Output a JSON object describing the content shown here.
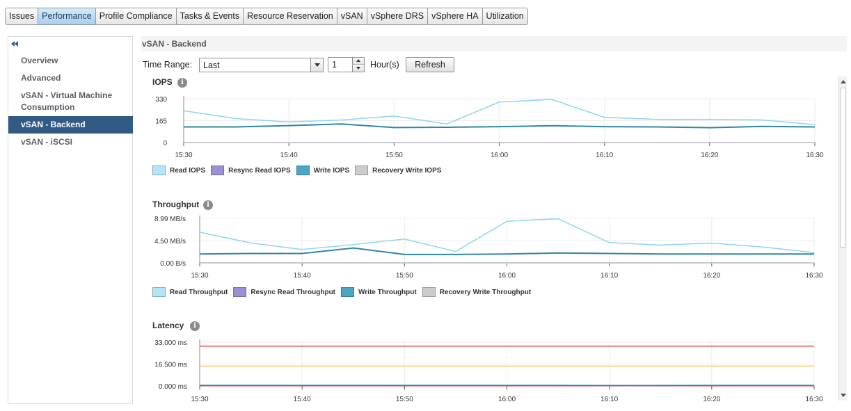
{
  "top_tabs": [
    {
      "label": "Issues",
      "active": false
    },
    {
      "label": "Performance",
      "active": true
    },
    {
      "label": "Profile Compliance",
      "active": false
    },
    {
      "label": "Tasks & Events",
      "active": false
    },
    {
      "label": "Resource Reservation",
      "active": false
    },
    {
      "label": "vSAN",
      "active": false
    },
    {
      "label": "vSphere DRS",
      "active": false
    },
    {
      "label": "vSphere HA",
      "active": false
    },
    {
      "label": "Utilization",
      "active": false
    }
  ],
  "sidebar": {
    "items": [
      {
        "label": "Overview",
        "active": false
      },
      {
        "label": "Advanced",
        "active": false
      },
      {
        "label": "vSAN - Virtual Machine Consumption",
        "active": false
      },
      {
        "label": "vSAN - Backend",
        "active": true
      },
      {
        "label": "vSAN - iSCSI",
        "active": false
      }
    ]
  },
  "panel": {
    "title": "vSAN - Backend",
    "time_range_label": "Time Range:",
    "time_range_value": "Last",
    "hours_value": "1",
    "hours_label": "Hour(s)",
    "refresh_label": "Refresh"
  },
  "chart_data": [
    {
      "type": "line",
      "title": "IOPS",
      "x": [
        "15:30",
        "15:35",
        "15:40",
        "15:45",
        "15:50",
        "15:55",
        "16:00",
        "16:05",
        "16:10",
        "16:15",
        "16:20",
        "16:25",
        "16:30"
      ],
      "x_ticks": [
        "15:30",
        "15:40",
        "15:50",
        "16:00",
        "16:10",
        "16:20",
        "16:30"
      ],
      "y_ticks": [
        "0",
        "165",
        "330"
      ],
      "ylim": [
        0,
        330
      ],
      "grid": true,
      "legend_position": "bottom-left",
      "series": [
        {
          "name": "Read IOPS",
          "color": "#8fd4ef",
          "values": [
            240,
            180,
            155,
            170,
            200,
            140,
            305,
            325,
            190,
            175,
            175,
            170,
            135
          ]
        },
        {
          "name": "Resync Read IOPS",
          "color": "#9d8fd6",
          "values": [
            0,
            0,
            0,
            0,
            0,
            0,
            0,
            0,
            0,
            0,
            0,
            0,
            0
          ]
        },
        {
          "name": "Write IOPS",
          "color": "#2f86a6",
          "values": [
            118,
            118,
            128,
            140,
            113,
            115,
            120,
            127,
            120,
            118,
            112,
            122,
            118
          ]
        },
        {
          "name": "Recovery Write IOPS",
          "color": "#c9c9c9",
          "values": [
            0,
            0,
            0,
            0,
            0,
            0,
            0,
            0,
            0,
            0,
            0,
            0,
            0
          ]
        }
      ]
    },
    {
      "type": "line",
      "title": "Throughput",
      "x": [
        "15:30",
        "15:35",
        "15:40",
        "15:45",
        "15:50",
        "15:55",
        "16:00",
        "16:05",
        "16:10",
        "16:15",
        "16:20",
        "16:25",
        "16:30"
      ],
      "x_ticks": [
        "15:30",
        "15:40",
        "15:50",
        "16:00",
        "16:10",
        "16:20",
        "16:30"
      ],
      "y_ticks": [
        "0.00 B/s",
        "4.50 MB/s",
        "8.99 MB/s"
      ],
      "ylim": [
        0,
        8.99
      ],
      "grid": true,
      "legend_position": "bottom-left",
      "series": [
        {
          "name": "Read Throughput",
          "color": "#8fd4ef",
          "values": [
            6.2,
            4.0,
            2.7,
            3.7,
            4.8,
            2.3,
            8.4,
            8.9,
            4.1,
            3.6,
            4.0,
            3.2,
            2.1
          ]
        },
        {
          "name": "Resync Read Throughput",
          "color": "#9d8fd6",
          "values": [
            0,
            0,
            0,
            0,
            0,
            0,
            0,
            0,
            0,
            0,
            0,
            0,
            0
          ]
        },
        {
          "name": "Write Throughput",
          "color": "#2f86a6",
          "values": [
            1.8,
            1.9,
            1.9,
            3.0,
            1.7,
            1.7,
            1.8,
            2.0,
            1.9,
            1.8,
            1.8,
            1.8,
            1.8
          ]
        },
        {
          "name": "Recovery Write Throughput",
          "color": "#c9c9c9",
          "values": [
            0,
            0,
            0,
            0,
            0,
            0,
            0,
            0,
            0,
            0,
            0,
            0,
            0
          ]
        }
      ]
    },
    {
      "type": "line",
      "title": "Latency",
      "x": [
        "15:30",
        "15:35",
        "15:40",
        "15:45",
        "15:50",
        "15:55",
        "16:00",
        "16:05",
        "16:10",
        "16:15",
        "16:20",
        "16:25",
        "16:30"
      ],
      "x_ticks": [
        "15:30",
        "15:40",
        "15:50",
        "16:00",
        "16:10",
        "16:20",
        "16:30"
      ],
      "y_ticks": [
        "0.000 ms",
        "16.500 ms",
        "33.000 ms"
      ],
      "ylim": [
        0,
        33
      ],
      "grid": true,
      "legend_position": "bottom-left",
      "series": [
        {
          "name": "",
          "color": "#d9534f",
          "values": [
            30,
            30,
            30,
            30,
            30,
            30,
            30,
            30,
            30,
            30,
            30,
            30,
            30
          ]
        },
        {
          "name": "",
          "color": "#f0d060",
          "values": [
            15,
            15,
            15,
            15,
            15,
            15,
            15,
            15,
            15,
            15,
            15,
            15,
            15
          ]
        },
        {
          "name": "",
          "color": "#8fd4ef",
          "values": [
            0.7,
            0.7,
            0.7,
            0.7,
            0.7,
            0.7,
            0.7,
            0.7,
            0.5,
            0.6,
            0.7,
            0.7,
            0.7
          ]
        },
        {
          "name": "",
          "color": "#2f86a6",
          "values": [
            0.4,
            0.4,
            0.4,
            0.4,
            0.4,
            0.4,
            0.4,
            0.4,
            0.3,
            0.3,
            0.4,
            0.4,
            0.4
          ]
        }
      ]
    }
  ]
}
